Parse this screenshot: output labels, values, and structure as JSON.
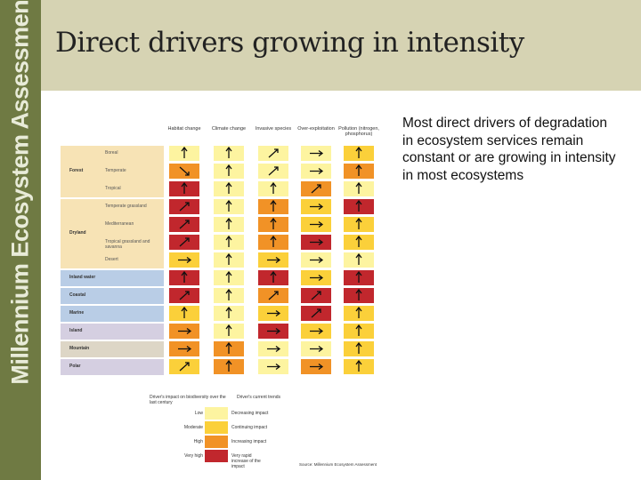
{
  "sidebar": {
    "brand": "Millennium Ecosystem Assessment"
  },
  "slide": {
    "title": "Direct drivers growing in intensity",
    "bullet": "Most direct drivers of degradation in ecosystem services remain constant or are growing in intensity in most ecosystems"
  },
  "table": {
    "columns": [
      "Habitat change",
      "Climate change",
      "Invasive species",
      "Over-exploitation",
      "Pollution (nitrogen, phosphorus)"
    ],
    "groups": [
      {
        "name": "Forest",
        "color": "#f7e3b5"
      },
      {
        "name": "Dryland",
        "color": "#f7e3b5"
      },
      {
        "name": "Inland water",
        "color": "#b9cde6"
      },
      {
        "name": "Coastal",
        "color": "#b9cde6"
      },
      {
        "name": "Marine",
        "color": "#b9cde6"
      },
      {
        "name": "Island",
        "color": "#d5cfe1"
      },
      {
        "name": "Mountain",
        "color": "#ddd6c6"
      },
      {
        "name": "Polar",
        "color": "#d5cfe1"
      }
    ],
    "rows": [
      {
        "label": "Boreal",
        "levels": [
          "low",
          "low",
          "low",
          "low",
          "moderate"
        ],
        "trends": [
          "up",
          "up",
          "diag",
          "right",
          "up"
        ]
      },
      {
        "label": "Temperate",
        "levels": [
          "high",
          "low",
          "low",
          "low",
          "high"
        ],
        "trends": [
          "down",
          "up",
          "diag",
          "right",
          "up"
        ]
      },
      {
        "label": "Tropical",
        "levels": [
          "veryhigh",
          "low",
          "low",
          "high",
          "low"
        ],
        "trends": [
          "up",
          "up",
          "up",
          "diag",
          "up"
        ]
      },
      {
        "label": "Temperate grassland",
        "levels": [
          "veryhigh",
          "low",
          "high",
          "moderate",
          "veryhigh"
        ],
        "trends": [
          "diag",
          "up",
          "up",
          "right",
          "up"
        ]
      },
      {
        "label": "Mediterranean",
        "levels": [
          "veryhigh",
          "low",
          "high",
          "moderate",
          "moderate"
        ],
        "trends": [
          "diag",
          "up",
          "up",
          "right",
          "up"
        ]
      },
      {
        "label": "Tropical grassland and savanna",
        "levels": [
          "veryhigh",
          "low",
          "high",
          "veryhigh",
          "moderate"
        ],
        "trends": [
          "diag",
          "up",
          "up",
          "right",
          "up"
        ]
      },
      {
        "label": "Desert",
        "levels": [
          "moderate",
          "low",
          "moderate",
          "low",
          "low"
        ],
        "trends": [
          "right",
          "up",
          "right",
          "right",
          "up"
        ]
      },
      {
        "label": "Inland water",
        "levels": [
          "veryhigh",
          "low",
          "veryhigh",
          "moderate",
          "veryhigh"
        ],
        "trends": [
          "up",
          "up",
          "up",
          "right",
          "up"
        ]
      },
      {
        "label": "Coastal",
        "levels": [
          "veryhigh",
          "low",
          "high",
          "veryhigh",
          "veryhigh"
        ],
        "trends": [
          "diag",
          "up",
          "diag",
          "diag",
          "up"
        ]
      },
      {
        "label": "Marine",
        "levels": [
          "moderate",
          "low",
          "moderate",
          "veryhigh",
          "moderate"
        ],
        "trends": [
          "up",
          "up",
          "right",
          "diag",
          "up"
        ]
      },
      {
        "label": "Island",
        "levels": [
          "high",
          "low",
          "veryhigh",
          "moderate",
          "moderate"
        ],
        "trends": [
          "right",
          "up",
          "right",
          "right",
          "up"
        ]
      },
      {
        "label": "Mountain",
        "levels": [
          "high",
          "high",
          "low",
          "low",
          "moderate"
        ],
        "trends": [
          "right",
          "up",
          "right",
          "right",
          "up"
        ]
      },
      {
        "label": "Polar",
        "levels": [
          "moderate",
          "high",
          "low",
          "high",
          "moderate"
        ],
        "trends": [
          "diag",
          "up",
          "right",
          "right",
          "up"
        ]
      }
    ],
    "legend": {
      "impact_title": "Driver's impact on biodiversity over the last century",
      "trend_title": "Driver's current trends",
      "impacts": [
        {
          "label": "Low",
          "color": "#fdf4a0"
        },
        {
          "label": "Moderate",
          "color": "#fbd03a"
        },
        {
          "label": "High",
          "color": "#f19226"
        },
        {
          "label": "Very high",
          "color": "#c1272d"
        }
      ],
      "trends": [
        "Decreasing impact",
        "Continuing impact",
        "Increasing impact",
        "Very rapid increase of the impact"
      ],
      "source": "Source: Millennium Ecosystem Assessment"
    },
    "level_colors": {
      "low": "#fdf4a0",
      "moderate": "#fbd03a",
      "high": "#f19226",
      "veryhigh": "#c1272d"
    }
  }
}
